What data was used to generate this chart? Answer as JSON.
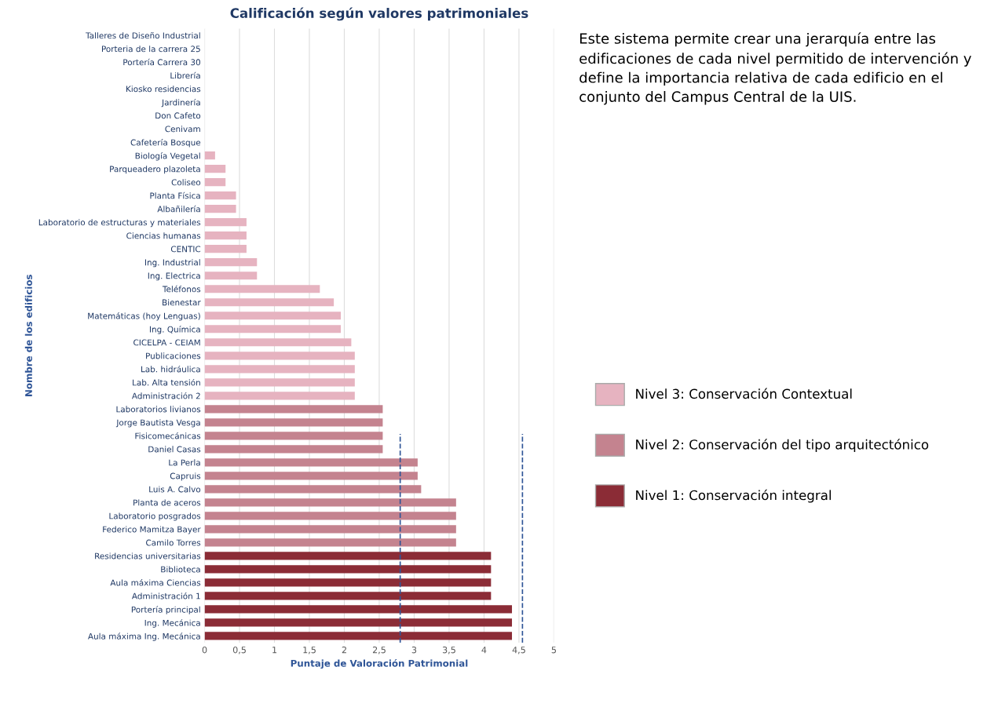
{
  "chart_data": {
    "type": "bar",
    "orientation": "horizontal",
    "title": "Calificación según valores patrimoniales",
    "xlabel": "Puntaje de Valoración Patrimonial",
    "ylabel": "Nombre de los edificios",
    "categories": [
      "Talleres de Diseño Industrial",
      "Porteria de la carrera 25",
      "Portería Carrera 30",
      "Librería",
      "Kiosko residencias",
      "Jardinería",
      "Don Cafeto",
      "Cenivam",
      "Cafetería Bosque",
      "Biología Vegetal",
      "Parqueadero plazoleta",
      "Coliseo",
      "Planta Física",
      "Albañilería",
      "Laboratorio de estructuras y materiales",
      "Ciencias humanas",
      "CENTIC",
      "Ing. Industrial",
      "Ing. Electrica",
      "Teléfonos",
      "Bienestar",
      "Matemáticas (hoy Lenguas)",
      "Ing. Química",
      "CICELPA - CEIAM",
      "Publicaciones",
      "Lab. hidráulica",
      "Lab. Alta tensión",
      "Administración 2",
      "Laboratorios livianos",
      "Jorge Bautista Vesga",
      "Fisicomecánicas",
      "Daniel Casas",
      "La Perla",
      "Capruis",
      "Luis A. Calvo",
      "Planta de aceros",
      "Laboratorio posgrados",
      "Federico Mamitza Bayer",
      "Camilo Torres",
      "Residencias universitarias",
      "Biblioteca",
      "Aula máxima Ciencias",
      "Administración 1",
      "Portería principal",
      "Ing. Mecánica",
      "Aula máxima Ing. Mecánica"
    ],
    "series": [
      {
        "name": "Nivel 3: Conservación Contextual",
        "color": "#e6b3c0",
        "values": [
          0,
          0,
          0,
          0,
          0,
          0,
          0,
          0,
          0,
          0.15,
          0.3,
          0.3,
          0.45,
          0.45,
          0.6,
          0.6,
          0.6,
          0.75,
          0.75,
          1.65,
          1.85,
          1.95,
          1.95,
          2.1,
          2.15,
          2.15,
          2.15,
          2.15,
          null,
          null,
          null,
          null,
          null,
          null,
          null,
          null,
          null,
          null,
          null,
          null,
          null,
          null,
          null,
          null,
          null,
          null
        ]
      },
      {
        "name": "Nivel 2: Conservación del tipo arquitectónico",
        "color": "#c4838f",
        "values": [
          null,
          null,
          null,
          null,
          null,
          null,
          null,
          null,
          null,
          null,
          null,
          null,
          null,
          null,
          null,
          null,
          null,
          null,
          null,
          null,
          null,
          null,
          null,
          null,
          null,
          null,
          null,
          null,
          2.55,
          2.55,
          2.55,
          2.55,
          3.05,
          3.05,
          3.1,
          3.6,
          3.6,
          3.6,
          3.6,
          null,
          null,
          null,
          null,
          null,
          null,
          null
        ]
      },
      {
        "name": "Nivel 1: Conservación integral",
        "color": "#8b2c36",
        "values": [
          null,
          null,
          null,
          null,
          null,
          null,
          null,
          null,
          null,
          null,
          null,
          null,
          null,
          null,
          null,
          null,
          null,
          null,
          null,
          null,
          null,
          null,
          null,
          null,
          null,
          null,
          null,
          null,
          null,
          null,
          null,
          null,
          null,
          null,
          null,
          null,
          null,
          null,
          null,
          4.1,
          4.1,
          4.1,
          4.1,
          4.4,
          4.4,
          4.4
        ]
      }
    ],
    "xlim": [
      0,
      5
    ],
    "xticks": [
      0,
      {
        "value": 0.5,
        "label": "0,5"
      },
      1,
      {
        "value": 1.5,
        "label": "1,5"
      },
      2,
      {
        "value": 2.5,
        "label": "2,5"
      },
      3,
      {
        "value": 3.5,
        "label": "3,5"
      },
      4,
      {
        "value": 4.5,
        "label": "4,5"
      },
      5
    ],
    "grid": "x",
    "legend": "right",
    "ref_lines": [
      {
        "axis": "x",
        "value": 2.8,
        "color": "#2f5597",
        "line_style": "dashed"
      },
      {
        "axis": "x",
        "value": 4.55,
        "color": "#2f5597",
        "line_style": "dashed"
      }
    ],
    "annotations": [
      "Este sistema permite crear una jerarquía entre las edificaciones de cada nivel permitido de intervención y define la importancia relativa de cada edificio en el conjunto del Campus Central de la UIS."
    ]
  }
}
